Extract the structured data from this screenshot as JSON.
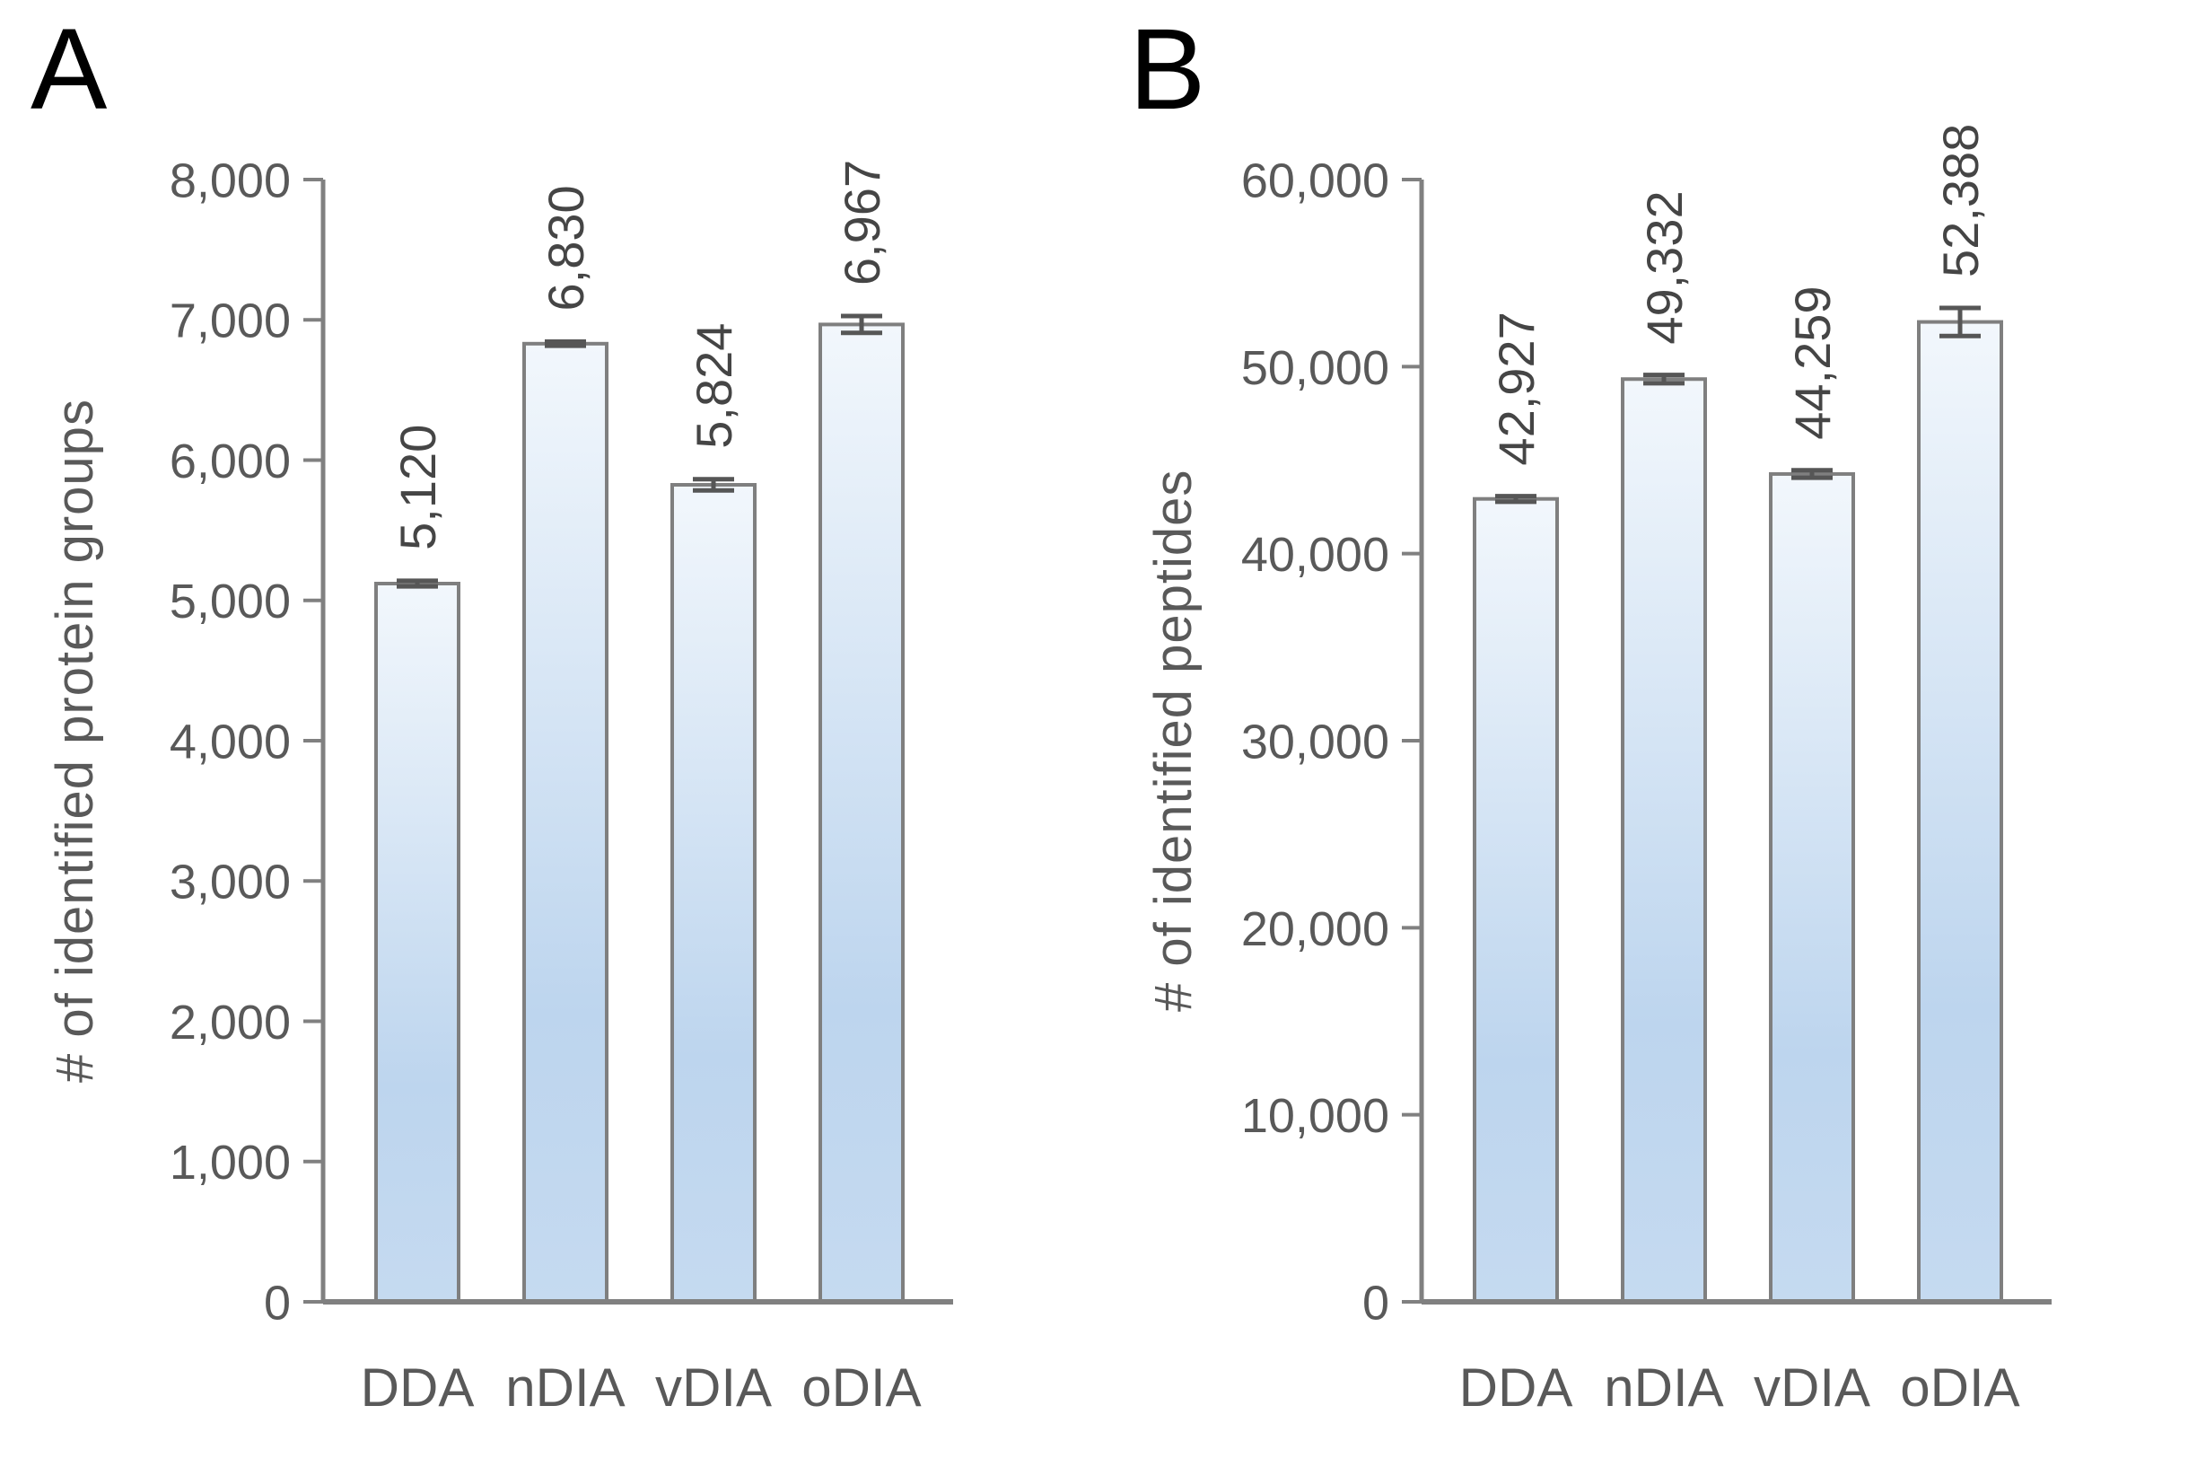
{
  "colors": {
    "background": "#ffffff",
    "bar_gradient_top": "#f2f7fc",
    "bar_gradient_mid": "#bdd5ee",
    "bar_gradient_bottom": "#c5daf0",
    "bar_border": "#7f7f7f",
    "axis": "#808080",
    "tick_text": "#595959",
    "category_text": "#595959",
    "value_text": "#454545",
    "error_bar": "#565656",
    "panel_label": "#000000"
  },
  "chart_data": [
    {
      "type": "bar",
      "panel_label": "A",
      "title": "",
      "xlabel": "",
      "ylabel": "# of identified protein groups",
      "categories": [
        "DDA",
        "nDIA",
        "vDIA",
        "oDIA"
      ],
      "values": [
        5120,
        6830,
        5824,
        6967
      ],
      "value_labels": [
        "5,120",
        "6,830",
        "5,824",
        "6,967"
      ],
      "errors": [
        20,
        15,
        40,
        60
      ],
      "ylim": [
        0,
        8000
      ],
      "yticks": [
        0,
        1000,
        2000,
        3000,
        4000,
        5000,
        6000,
        7000,
        8000
      ],
      "ytick_labels": [
        "0",
        "1,000",
        "2,000",
        "3,000",
        "4,000",
        "5,000",
        "6,000",
        "7,000",
        "8,000"
      ],
      "grid": false,
      "legend": null
    },
    {
      "type": "bar",
      "panel_label": "B",
      "title": "",
      "xlabel": "",
      "ylabel": "# of identified peptides",
      "categories": [
        "DDA",
        "nDIA",
        "vDIA",
        "oDIA"
      ],
      "values": [
        42927,
        49332,
        44259,
        52388
      ],
      "value_labels": [
        "42,927",
        "49,332",
        "44,259",
        "52,388"
      ],
      "errors": [
        150,
        220,
        200,
        750
      ],
      "ylim": [
        0,
        60000
      ],
      "yticks": [
        0,
        10000,
        20000,
        30000,
        40000,
        50000,
        60000
      ],
      "ytick_labels": [
        "0",
        "10,000",
        "20,000",
        "30,000",
        "40,000",
        "50,000",
        "60,000"
      ],
      "grid": false,
      "legend": null
    }
  ]
}
